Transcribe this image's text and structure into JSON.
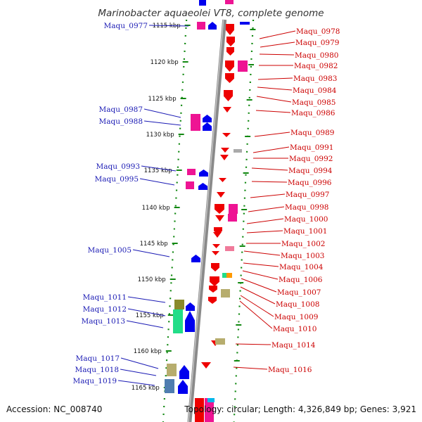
{
  "title": "Marinobacter aquaeolei VT8, complete genome",
  "footer": {
    "accession": "Accession: NC_008740",
    "topology": "Topology: circular; Length: 4,326,849 bp; Genes: 3,921"
  },
  "ticks": [
    "1115 kbp",
    "1120 kbp",
    "1125 kbp",
    "1130 kbp",
    "1135 kbp",
    "1140 kbp",
    "1145 kbp",
    "1150 kbp",
    "1155 kbp",
    "1160 kbp",
    "1165 kbp"
  ],
  "left_labels": [
    "Maqu_0977",
    "Maqu_0987",
    "Maqu_0988",
    "Maqu_0993",
    "Maqu_0995",
    "Maqu_1005",
    "Maqu_1011",
    "Maqu_1012",
    "Maqu_1013",
    "Maqu_1017",
    "Maqu_1018",
    "Maqu_1019"
  ],
  "right_labels": [
    "Maqu_0978",
    "Maqu_0979",
    "Maqu_0980",
    "Maqu_0982",
    "Maqu_0983",
    "Maqu_0984",
    "Maqu_0985",
    "Maqu_0986",
    "Maqu_0989",
    "Maqu_0991",
    "Maqu_0992",
    "Maqu_0994",
    "Maqu_0996",
    "Maqu_0997",
    "Maqu_0998",
    "Maqu_1000",
    "Maqu_1001",
    "Maqu_1002",
    "Maqu_1003",
    "Maqu_1004",
    "Maqu_1006",
    "Maqu_1007",
    "Maqu_1008",
    "Maqu_1009",
    "Maqu_1010",
    "Maqu_1014",
    "Maqu_1016"
  ],
  "colors": {
    "forward_cds": "#0000ee",
    "reverse_cds": "#ee0000",
    "pink": "#ee1493",
    "olive_a": "#8a8a2a",
    "olive_b": "#b7ad6e",
    "green": "#22dd88",
    "steel_blue": "#4f7db0",
    "light_pink": "#f07a9a",
    "grey": "#aaaaaa",
    "orange": "#ff9900",
    "backbone": "#8a8a8a",
    "tick": "#118811"
  }
}
